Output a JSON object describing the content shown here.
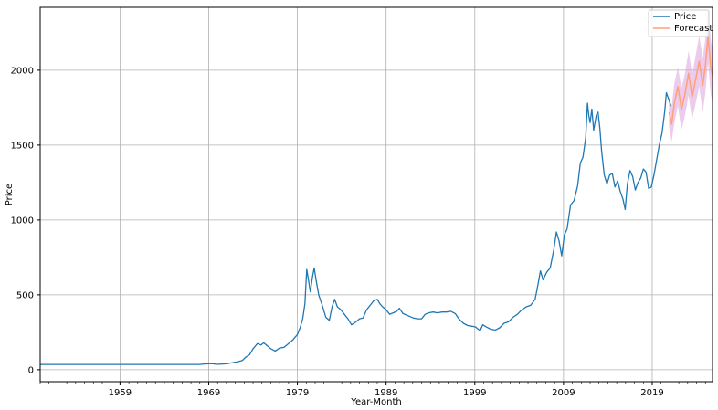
{
  "chart_data": {
    "type": "line",
    "title": "",
    "xlabel": "Year-Month",
    "ylabel": "Price",
    "xlim": [
      1950.0,
      2025.8
    ],
    "ylim": [
      -80,
      2420
    ],
    "x_ticks": [
      1959,
      1969,
      1979,
      1989,
      1999,
      2009,
      2019
    ],
    "x_tick_labels": [
      "1959",
      "1969",
      "1979",
      "1989",
      "1999",
      "2009",
      "2019"
    ],
    "y_ticks": [
      0,
      500,
      1000,
      1500,
      2000
    ],
    "y_tick_labels": [
      "0",
      "500",
      "1000",
      "1500",
      "2000"
    ],
    "grid": true,
    "legend": {
      "placement": "top-right",
      "entries": [
        "Price",
        "Forecast"
      ]
    },
    "colors": {
      "price": "#1f77b4",
      "forecast": "#ffa07a",
      "interval": "#dda0dd"
    },
    "series": [
      {
        "name": "Price",
        "points": [
          [
            1950.0,
            35
          ],
          [
            1955,
            35
          ],
          [
            1960,
            35
          ],
          [
            1965,
            35
          ],
          [
            1968,
            35
          ],
          [
            1968.5,
            38
          ],
          [
            1969.3,
            41
          ],
          [
            1970,
            36
          ],
          [
            1971,
            40
          ],
          [
            1972,
            50
          ],
          [
            1972.8,
            62
          ],
          [
            1973.2,
            85
          ],
          [
            1973.6,
            100
          ],
          [
            1974.0,
            140
          ],
          [
            1974.5,
            175
          ],
          [
            1974.9,
            165
          ],
          [
            1975.2,
            180
          ],
          [
            1975.6,
            160
          ],
          [
            1976.0,
            140
          ],
          [
            1976.5,
            125
          ],
          [
            1977.0,
            145
          ],
          [
            1977.5,
            150
          ],
          [
            1978.0,
            175
          ],
          [
            1978.5,
            200
          ],
          [
            1979.0,
            235
          ],
          [
            1979.3,
            280
          ],
          [
            1979.6,
            340
          ],
          [
            1979.85,
            440
          ],
          [
            1980.05,
            670
          ],
          [
            1980.25,
            600
          ],
          [
            1980.45,
            520
          ],
          [
            1980.7,
            620
          ],
          [
            1980.9,
            680
          ],
          [
            1981.1,
            600
          ],
          [
            1981.4,
            500
          ],
          [
            1981.8,
            430
          ],
          [
            1982.2,
            350
          ],
          [
            1982.6,
            330
          ],
          [
            1982.9,
            420
          ],
          [
            1983.2,
            470
          ],
          [
            1983.5,
            420
          ],
          [
            1983.9,
            400
          ],
          [
            1984.3,
            370
          ],
          [
            1984.7,
            340
          ],
          [
            1985.1,
            300
          ],
          [
            1985.6,
            320
          ],
          [
            1986.0,
            340
          ],
          [
            1986.4,
            345
          ],
          [
            1986.8,
            400
          ],
          [
            1987.2,
            430
          ],
          [
            1987.6,
            460
          ],
          [
            1988.0,
            470
          ],
          [
            1988.3,
            440
          ],
          [
            1988.6,
            420
          ],
          [
            1989.0,
            400
          ],
          [
            1989.4,
            370
          ],
          [
            1989.8,
            380
          ],
          [
            1990.2,
            390
          ],
          [
            1990.5,
            410
          ],
          [
            1990.9,
            375
          ],
          [
            1991.3,
            365
          ],
          [
            1991.7,
            355
          ],
          [
            1992.1,
            345
          ],
          [
            1992.5,
            340
          ],
          [
            1993.0,
            340
          ],
          [
            1993.4,
            370
          ],
          [
            1993.8,
            380
          ],
          [
            1994.3,
            385
          ],
          [
            1994.8,
            380
          ],
          [
            1995.3,
            385
          ],
          [
            1995.8,
            385
          ],
          [
            1996.3,
            390
          ],
          [
            1996.8,
            375
          ],
          [
            1997.2,
            340
          ],
          [
            1997.7,
            310
          ],
          [
            1998.2,
            295
          ],
          [
            1998.7,
            290
          ],
          [
            1999.1,
            285
          ],
          [
            1999.6,
            260
          ],
          [
            1999.9,
            300
          ],
          [
            2000.3,
            285
          ],
          [
            2000.8,
            270
          ],
          [
            2001.3,
            265
          ],
          [
            2001.8,
            280
          ],
          [
            2002.3,
            310
          ],
          [
            2002.8,
            320
          ],
          [
            2003.3,
            350
          ],
          [
            2003.8,
            370
          ],
          [
            2004.3,
            400
          ],
          [
            2004.8,
            420
          ],
          [
            2005.3,
            430
          ],
          [
            2005.8,
            470
          ],
          [
            2006.1,
            560
          ],
          [
            2006.4,
            660
          ],
          [
            2006.7,
            600
          ],
          [
            2007.1,
            650
          ],
          [
            2007.5,
            680
          ],
          [
            2007.9,
            800
          ],
          [
            2008.2,
            920
          ],
          [
            2008.5,
            860
          ],
          [
            2008.8,
            760
          ],
          [
            2009.1,
            900
          ],
          [
            2009.4,
            940
          ],
          [
            2009.8,
            1100
          ],
          [
            2010.2,
            1130
          ],
          [
            2010.6,
            1230
          ],
          [
            2010.9,
            1380
          ],
          [
            2011.2,
            1420
          ],
          [
            2011.5,
            1550
          ],
          [
            2011.7,
            1780
          ],
          [
            2011.85,
            1700
          ],
          [
            2012.0,
            1650
          ],
          [
            2012.2,
            1740
          ],
          [
            2012.4,
            1600
          ],
          [
            2012.7,
            1700
          ],
          [
            2012.9,
            1720
          ],
          [
            2013.1,
            1610
          ],
          [
            2013.3,
            1460
          ],
          [
            2013.6,
            1300
          ],
          [
            2013.9,
            1240
          ],
          [
            2014.2,
            1300
          ],
          [
            2014.5,
            1310
          ],
          [
            2014.8,
            1220
          ],
          [
            2015.1,
            1260
          ],
          [
            2015.4,
            1190
          ],
          [
            2015.7,
            1140
          ],
          [
            2015.95,
            1070
          ],
          [
            2016.2,
            1240
          ],
          [
            2016.5,
            1330
          ],
          [
            2016.8,
            1290
          ],
          [
            2017.1,
            1200
          ],
          [
            2017.4,
            1250
          ],
          [
            2017.7,
            1280
          ],
          [
            2018.0,
            1340
          ],
          [
            2018.3,
            1320
          ],
          [
            2018.6,
            1210
          ],
          [
            2018.9,
            1220
          ],
          [
            2019.2,
            1300
          ],
          [
            2019.5,
            1400
          ],
          [
            2019.8,
            1500
          ],
          [
            2020.1,
            1580
          ],
          [
            2020.4,
            1720
          ],
          [
            2020.6,
            1850
          ],
          [
            2020.9,
            1800
          ],
          [
            2021.1,
            1760
          ]
        ]
      },
      {
        "name": "Forecast",
        "points": [
          [
            2020.9,
            1720
          ],
          [
            2021.2,
            1640
          ],
          [
            2021.5,
            1780
          ],
          [
            2021.9,
            1890
          ],
          [
            2022.3,
            1740
          ],
          [
            2022.7,
            1840
          ],
          [
            2023.1,
            1980
          ],
          [
            2023.5,
            1820
          ],
          [
            2023.9,
            1940
          ],
          [
            2024.3,
            2060
          ],
          [
            2024.7,
            1900
          ],
          [
            2025.0,
            2030
          ],
          [
            2025.3,
            2230
          ],
          [
            2025.6,
            2020
          ],
          [
            2025.8,
            1960
          ]
        ],
        "lower": [
          [
            2020.9,
            1620
          ],
          [
            2021.2,
            1520
          ],
          [
            2021.5,
            1650
          ],
          [
            2021.9,
            1760
          ],
          [
            2022.3,
            1600
          ],
          [
            2022.7,
            1700
          ],
          [
            2023.1,
            1830
          ],
          [
            2023.5,
            1670
          ],
          [
            2023.9,
            1780
          ],
          [
            2024.3,
            1890
          ],
          [
            2024.7,
            1720
          ],
          [
            2025.0,
            1850
          ],
          [
            2025.3,
            2050
          ],
          [
            2025.6,
            1840
          ],
          [
            2025.8,
            1780
          ]
        ],
        "upper": [
          [
            2020.9,
            1820
          ],
          [
            2021.2,
            1760
          ],
          [
            2021.5,
            1910
          ],
          [
            2021.9,
            2020
          ],
          [
            2022.3,
            1880
          ],
          [
            2022.7,
            1980
          ],
          [
            2023.1,
            2130
          ],
          [
            2023.5,
            1970
          ],
          [
            2023.9,
            2100
          ],
          [
            2024.3,
            2230
          ],
          [
            2024.7,
            2080
          ],
          [
            2025.0,
            2210
          ],
          [
            2025.3,
            2410
          ],
          [
            2025.6,
            2200
          ],
          [
            2025.8,
            2140
          ]
        ]
      }
    ]
  }
}
